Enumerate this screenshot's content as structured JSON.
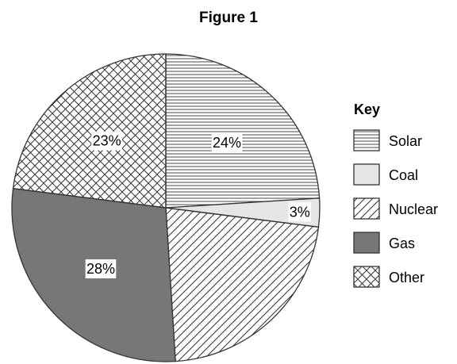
{
  "chart_data": {
    "type": "pie",
    "title": "Figure 1",
    "legend_title": "Key",
    "legend_position": "right",
    "slices": [
      {
        "label": "Solar",
        "value": 24,
        "display": "24%",
        "pattern": "horizontal-lines"
      },
      {
        "label": "Coal",
        "value": 3,
        "display": "3%",
        "pattern": "solid-light"
      },
      {
        "label": "Nuclear",
        "value": 22,
        "display": "",
        "pattern": "diagonal-lines"
      },
      {
        "label": "Gas",
        "value": 28,
        "display": "28%",
        "pattern": "solid-dark"
      },
      {
        "label": "Other",
        "value": 23,
        "display": "23%",
        "pattern": "crosshatch"
      }
    ],
    "colors": {
      "solid-light": "#e6e6e6",
      "solid-dark": "#777777",
      "line": "#333333",
      "stroke": "#333333"
    }
  }
}
